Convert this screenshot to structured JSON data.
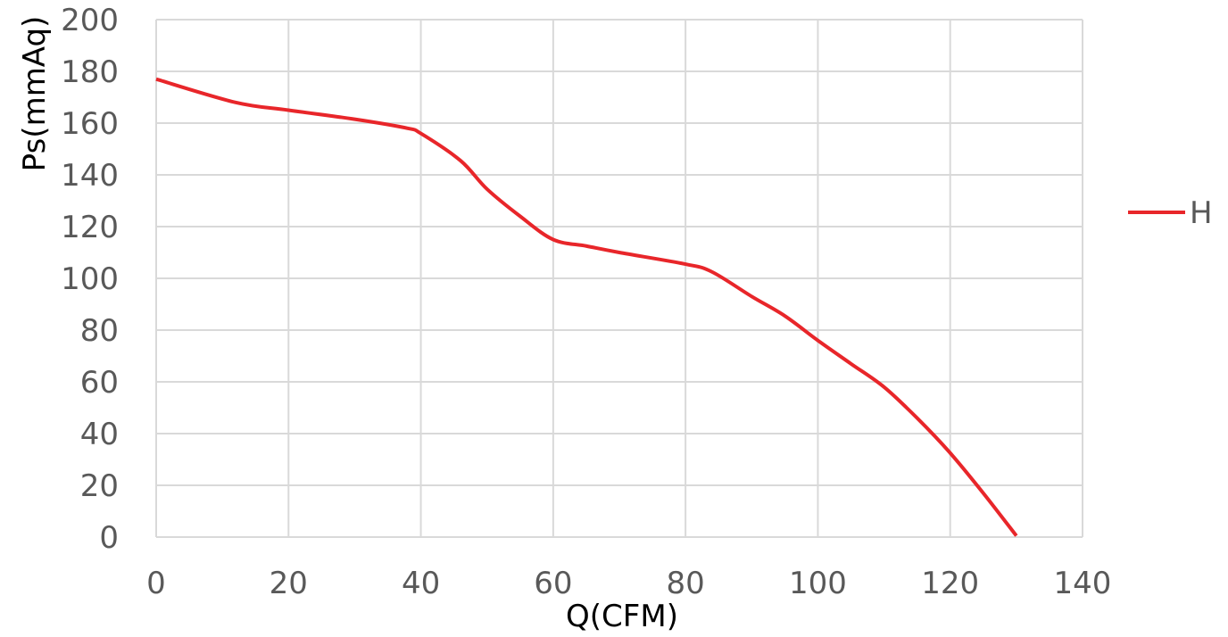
{
  "chart_data": {
    "type": "line",
    "title": "",
    "xlabel": "Q(CFM)",
    "ylabel": "Ps(mmAq)",
    "xlim": [
      0,
      140
    ],
    "ylim": [
      0,
      200
    ],
    "xticks": [
      "0",
      "20",
      "40",
      "60",
      "80",
      "100",
      "120",
      "140"
    ],
    "yticks": [
      "0",
      "20",
      "40",
      "60",
      "80",
      "100",
      "120",
      "140",
      "160",
      "180",
      "200"
    ],
    "grid": true,
    "legend_position": "right",
    "series": [
      {
        "name": "H",
        "color": "#e8262a",
        "x": [
          0,
          12,
          20,
          30,
          38,
          40,
          46,
          50,
          55,
          60,
          65,
          70,
          80,
          84,
          90,
          95,
          100,
          105,
          110,
          115,
          120,
          125,
          130
        ],
        "y": [
          177,
          168,
          165,
          161.5,
          158,
          156,
          145.5,
          134.5,
          124,
          115,
          112.5,
          110,
          105.5,
          102.5,
          93,
          85.5,
          76,
          67,
          58,
          46,
          32.5,
          17,
          0.5
        ]
      }
    ]
  }
}
